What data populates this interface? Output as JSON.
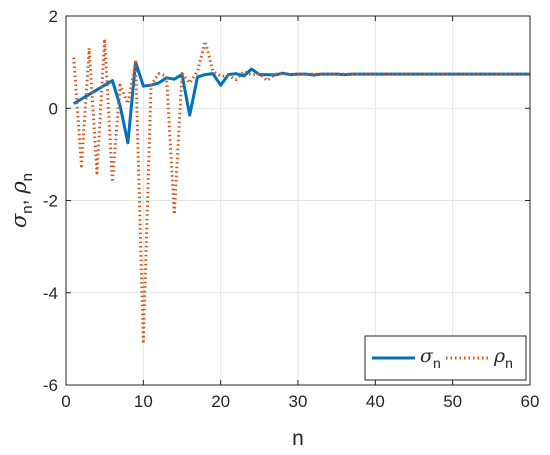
{
  "chart_data": {
    "type": "line",
    "xlabel": "n",
    "ylabel": "σn, ρn",
    "xlim": [
      0,
      60
    ],
    "ylim": [
      -6,
      2
    ],
    "xticks": [
      0,
      10,
      20,
      30,
      40,
      50,
      60
    ],
    "yticks": [
      -6,
      -4,
      -2,
      0,
      2
    ],
    "grid": true,
    "legend_position": "bottom-right",
    "series": [
      {
        "name": "σn",
        "color": "#0072BD",
        "style": "solid",
        "x": [
          1,
          2,
          3,
          4,
          5,
          6,
          7,
          8,
          9,
          10,
          11,
          12,
          13,
          14,
          15,
          16,
          17,
          18,
          19,
          20,
          21,
          22,
          23,
          24,
          25,
          26,
          27,
          28,
          29,
          30,
          31,
          32,
          33,
          34,
          35,
          36,
          37,
          38,
          39,
          40,
          41,
          42,
          43,
          44,
          45,
          46,
          47,
          48,
          49,
          50,
          51,
          52,
          53,
          54,
          55,
          56,
          57,
          58,
          59,
          60
        ],
        "values": [
          0.1,
          0.2,
          0.3,
          0.4,
          0.5,
          0.6,
          0.05,
          -0.75,
          1.0,
          0.48,
          0.5,
          0.55,
          0.66,
          0.63,
          0.73,
          -0.15,
          0.68,
          0.73,
          0.75,
          0.5,
          0.73,
          0.75,
          0.7,
          0.85,
          0.73,
          0.73,
          0.72,
          0.76,
          0.73,
          0.74,
          0.74,
          0.72,
          0.74,
          0.74,
          0.74,
          0.73,
          0.74,
          0.74,
          0.74,
          0.74,
          0.74,
          0.74,
          0.74,
          0.74,
          0.74,
          0.74,
          0.74,
          0.74,
          0.74,
          0.74,
          0.74,
          0.74,
          0.74,
          0.74,
          0.74,
          0.74,
          0.74,
          0.74,
          0.74,
          0.74
        ]
      },
      {
        "name": "ρn",
        "color": "#D95319",
        "style": "dotted",
        "x": [
          1,
          2,
          3,
          4,
          5,
          6,
          7,
          8,
          9,
          10,
          11,
          12,
          13,
          14,
          15,
          16,
          17,
          18,
          19,
          20,
          21,
          22,
          23,
          24,
          25,
          26,
          27,
          28,
          29,
          30,
          31,
          32,
          33,
          34,
          35,
          36,
          37,
          38,
          39,
          40,
          41,
          42,
          43,
          44,
          45,
          46,
          47,
          48,
          49,
          50,
          51,
          52,
          53,
          54,
          55,
          56,
          57,
          58,
          59,
          60
        ],
        "values": [
          1.1,
          -1.25,
          1.3,
          -1.4,
          1.5,
          -1.6,
          0.5,
          0.1,
          1.0,
          -5.05,
          0.5,
          0.75,
          0.7,
          -2.3,
          0.75,
          0.55,
          0.8,
          1.45,
          0.8,
          0.7,
          0.7,
          0.62,
          0.8,
          0.72,
          0.75,
          0.6,
          0.74,
          0.75,
          0.73,
          0.74,
          0.74,
          0.74,
          0.74,
          0.74,
          0.74,
          0.74,
          0.74,
          0.74,
          0.74,
          0.74,
          0.74,
          0.74,
          0.74,
          0.74,
          0.74,
          0.74,
          0.74,
          0.74,
          0.74,
          0.74,
          0.74,
          0.74,
          0.74,
          0.74,
          0.74,
          0.74,
          0.74,
          0.74,
          0.74,
          0.74
        ]
      }
    ],
    "legend": {
      "items": [
        {
          "symbol": "σ",
          "sub": "n"
        },
        {
          "symbol": "ρ",
          "sub": "n"
        }
      ]
    }
  }
}
